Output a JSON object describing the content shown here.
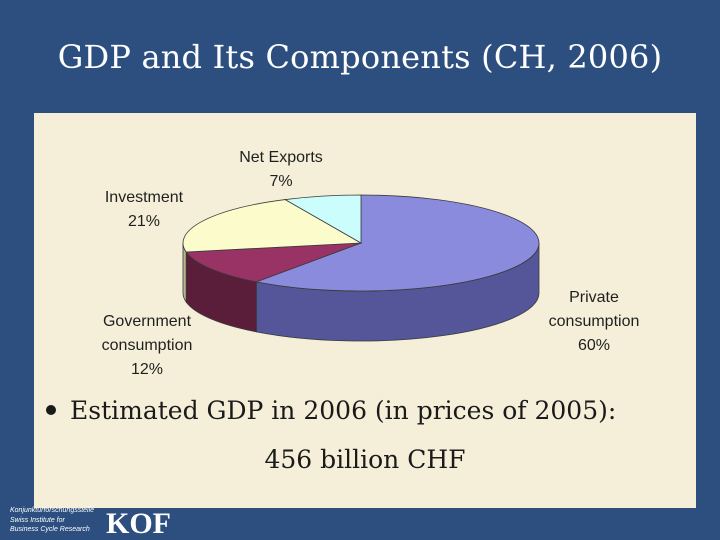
{
  "slide": {
    "title": "GDP and Its Components (CH, 2006)",
    "bullet_line1": "Estimated GDP in 2006 (in prices of 2005):",
    "bullet_line2": "456 billion CHF"
  },
  "footer": {
    "institute_lines": [
      "Konjunkturforschungsstelle",
      "Swiss Institute for",
      "Business Cycle Research"
    ],
    "logo": "KOF"
  },
  "colors": {
    "background": "#2c4f7f",
    "panel": "#f5efd9"
  },
  "chart_data": {
    "type": "pie",
    "title": "",
    "slices": [
      {
        "label_lines": [
          "Private",
          "consumption"
        ],
        "pct_label": "60%",
        "value": 60,
        "top_color": "#8b8bde",
        "side_color": "#55559a"
      },
      {
        "label_lines": [
          "Government",
          "consumption"
        ],
        "pct_label": "12%",
        "value": 12,
        "top_color": "#993366",
        "side_color": "#5a1e3a"
      },
      {
        "label_lines": [
          "Investment"
        ],
        "pct_label": "21%",
        "value": 21,
        "top_color": "#fbfbcc",
        "side_color": "#b7b78e"
      },
      {
        "label_lines": [
          "Net Exports"
        ],
        "pct_label": "7%",
        "value": 7,
        "top_color": "#ccfdfd",
        "side_color": "#8fb2b2"
      }
    ]
  }
}
